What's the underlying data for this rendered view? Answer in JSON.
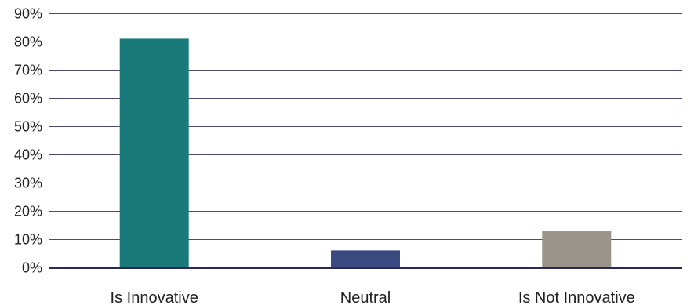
{
  "chart_data": {
    "type": "bar",
    "categories": [
      "Is Innovative",
      "Neutral",
      "Is Not Innovative"
    ],
    "values": [
      81,
      6,
      13
    ],
    "ylim": [
      0,
      90
    ],
    "yticks": [
      0,
      10,
      20,
      30,
      40,
      50,
      60,
      70,
      80,
      90
    ],
    "ytick_labels": [
      "0%",
      "10%",
      "20%",
      "30%",
      "40%",
      "50%",
      "60%",
      "70%",
      "80%",
      "90%"
    ],
    "bar_colors": [
      "#1a7a7a",
      "#3a4a80",
      "#9a948a"
    ],
    "grid_color": "#4a4a6a",
    "axis_color": "#2a2a5a",
    "grid": true,
    "legend": "none"
  }
}
